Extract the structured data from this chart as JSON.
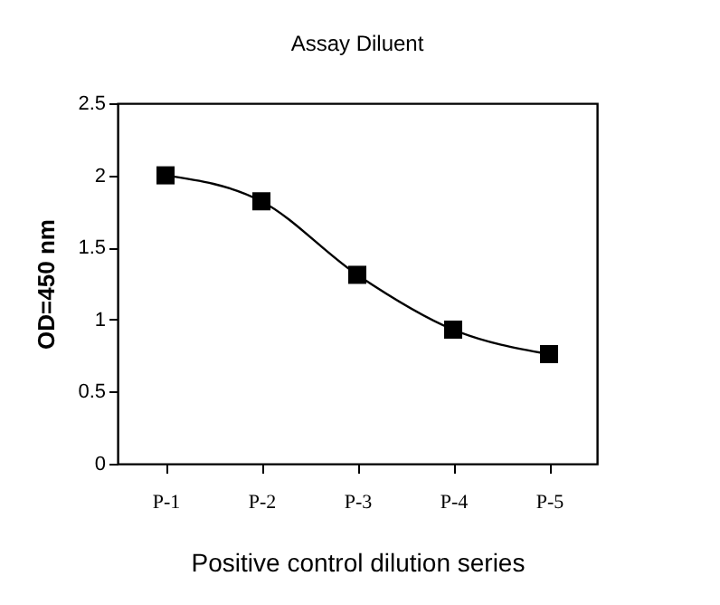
{
  "chart_data": {
    "type": "line",
    "title": "Assay Diluent",
    "xlabel": "Positive control dilution series",
    "ylabel": "OD=450 nm",
    "categories": [
      "P-1",
      "P-2",
      "P-3",
      "P-4",
      "P-5"
    ],
    "series": [
      {
        "color": "#000000",
        "values": [
          2.0,
          1.82,
          1.31,
          0.93,
          0.76
        ]
      }
    ],
    "ylim": [
      0,
      2.5
    ],
    "yticks": [
      0,
      0.5,
      1,
      1.5,
      2,
      2.5
    ],
    "grid": false,
    "marker": "square",
    "line_style": "solid"
  }
}
